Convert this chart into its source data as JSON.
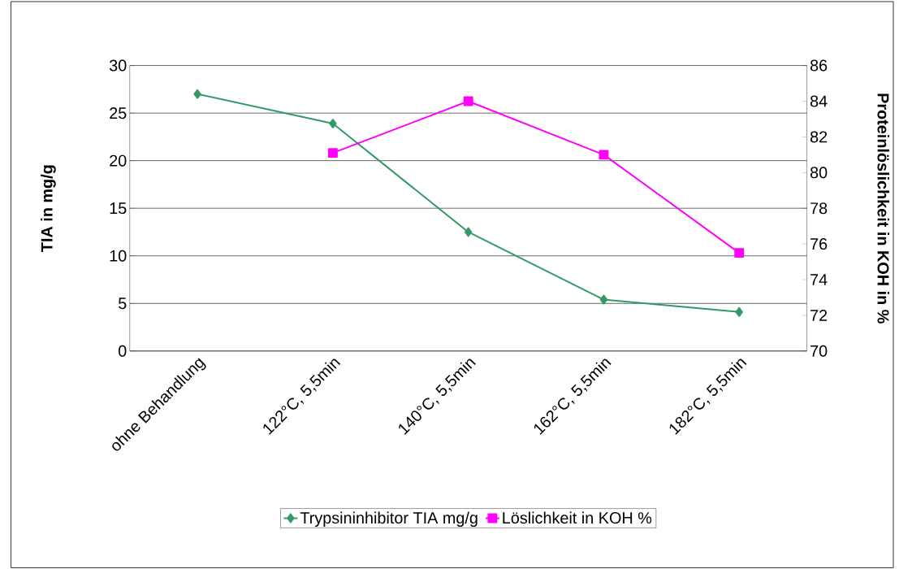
{
  "chart_data": {
    "type": "line",
    "ylabel": "TIA in mg/g",
    "y2label": "Proteinlöslichkeit in KOH in %",
    "categories": [
      "ohne Behandlung",
      "122°C, 5,5min",
      "140°C, 5,5min",
      "162°C, 5,5min",
      "182°C, 5,5min"
    ],
    "series": [
      {
        "name": "Trypsininhibitor TIA mg/g",
        "color": "#339966",
        "marker": "diamond",
        "values": [
          27,
          23.9,
          12.5,
          5.4,
          4.1
        ]
      },
      {
        "name": "Löslichkeit in KOH %",
        "color": "#ff00ff",
        "marker": "square",
        "axis": "y2",
        "values": [
          null,
          81.1,
          84,
          81,
          75.5
        ]
      }
    ],
    "ylim": [
      0,
      30
    ],
    "yticks": [
      0,
      5,
      10,
      15,
      20,
      25,
      30
    ],
    "y2lim": [
      70,
      86
    ],
    "y2ticks": [
      70,
      72,
      74,
      76,
      78,
      80,
      82,
      84,
      86
    ],
    "grid": "y",
    "legend": "bottom",
    "line_style": "solid"
  }
}
